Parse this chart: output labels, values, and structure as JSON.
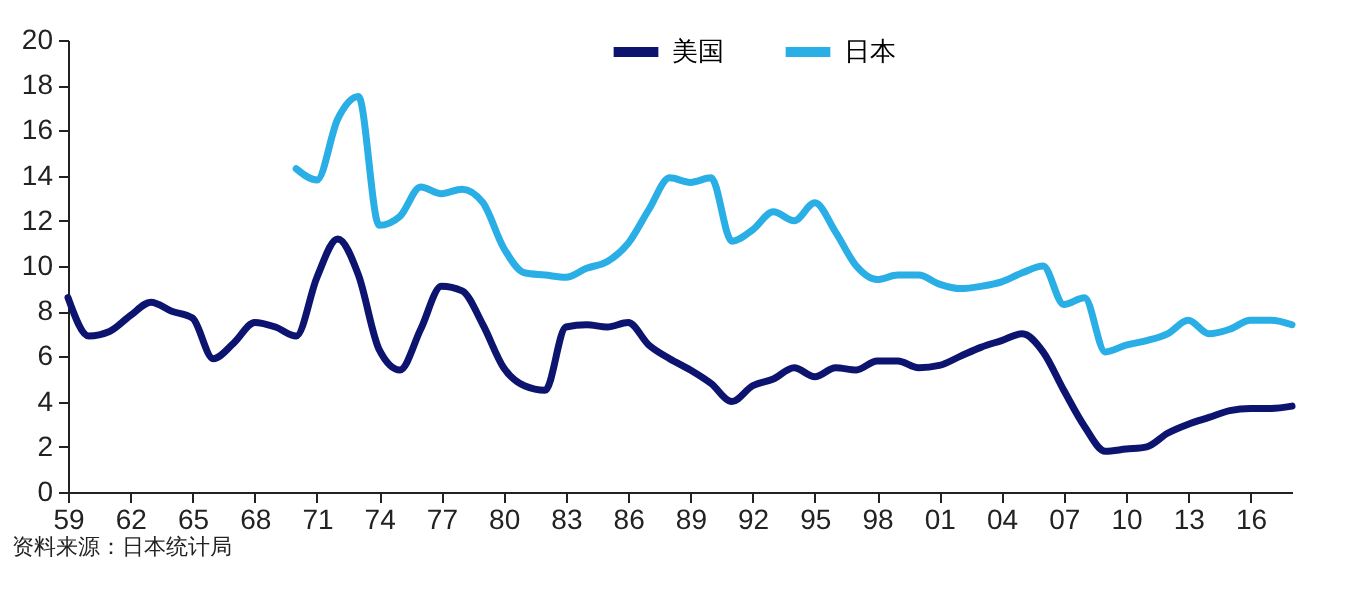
{
  "chart_data": {
    "type": "line",
    "categories": [
      "59",
      null,
      null,
      "62",
      null,
      null,
      "65",
      null,
      null,
      "68",
      null,
      null,
      "71",
      null,
      null,
      "74",
      null,
      null,
      "77",
      null,
      null,
      "80",
      null,
      null,
      "83",
      null,
      null,
      "86",
      null,
      null,
      "89",
      null,
      null,
      "92",
      null,
      null,
      "95",
      null,
      null,
      "98",
      null,
      null,
      "01",
      null,
      null,
      "04",
      null,
      null,
      "07",
      null,
      null,
      "10",
      null,
      null,
      "13",
      null,
      null,
      "16",
      null,
      null
    ],
    "series": [
      {
        "name": "美国",
        "color": "#0d1470",
        "values": [
          8.6,
          6.9,
          7.1,
          7.8,
          8.4,
          8.0,
          7.7,
          5.9,
          6.6,
          7.5,
          7.3,
          6.9,
          9.5,
          11.2,
          9.6,
          6.3,
          5.4,
          7.2,
          9.1,
          8.9,
          7.4,
          5.5,
          4.7,
          4.5,
          7.3,
          7.4,
          7.3,
          7.5,
          6.5,
          5.9,
          5.4,
          4.8,
          4.0,
          4.7,
          5.0,
          5.5,
          5.1,
          5.5,
          5.4,
          5.8,
          5.8,
          5.5,
          5.6,
          6.0,
          6.4,
          6.7,
          7.0,
          6.2,
          4.5,
          2.9,
          1.8,
          1.9,
          2.0,
          2.6,
          3.0,
          3.3,
          3.6,
          3.7,
          3.7,
          3.8
        ]
      },
      {
        "name": "日本",
        "color": "#2aaee6",
        "values": [
          null,
          null,
          null,
          null,
          null,
          null,
          null,
          null,
          null,
          null,
          null,
          14.3,
          13.8,
          16.5,
          17.5,
          11.8,
          12.2,
          13.5,
          13.2,
          13.4,
          12.8,
          10.8,
          9.7,
          9.6,
          9.5,
          9.9,
          10.2,
          11.0,
          12.5,
          13.9,
          13.7,
          13.9,
          11.1,
          11.6,
          12.4,
          12.0,
          12.8,
          11.5,
          10.0,
          9.4,
          9.6,
          9.6,
          9.2,
          9.0,
          9.1,
          9.3,
          9.7,
          10.0,
          8.3,
          8.6,
          6.2,
          6.5,
          6.7,
          7.0,
          7.6,
          7.0,
          7.2,
          7.6,
          7.6,
          7.4
        ]
      }
    ],
    "ylim": [
      0,
      20
    ],
    "yticks": [
      0,
      2,
      4,
      6,
      8,
      10,
      12,
      14,
      16,
      18,
      20
    ],
    "legend": "top",
    "marker": "none",
    "line_style": "solid",
    "grid": false,
    "annotations": [
      "资料来源：日本统计局"
    ]
  }
}
